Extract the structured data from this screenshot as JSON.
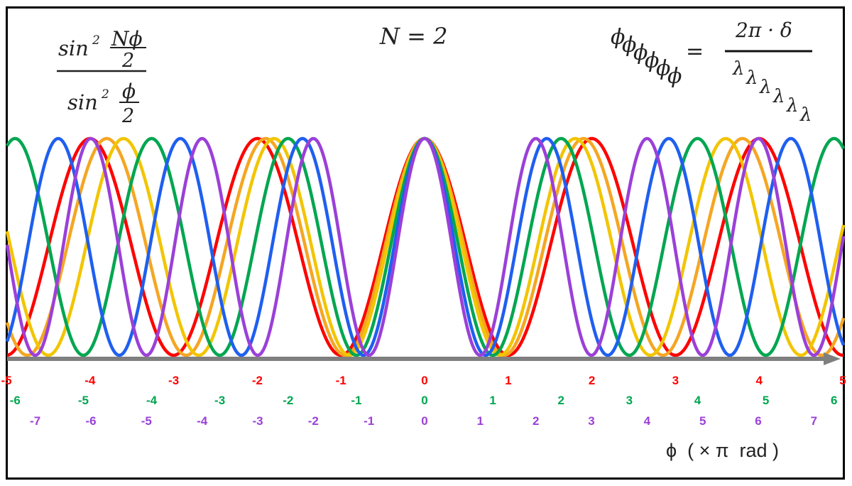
{
  "formula": {
    "numerator_func": "sin",
    "numerator_power": "2",
    "numerator_arg": "Nϕ",
    "numerator_den": "2",
    "denominator_func": "sin",
    "denominator_power": "2",
    "denominator_arg": "ϕ",
    "denominator_den": "2"
  },
  "n_label": "N = 2",
  "phase_formula": {
    "lhs_symbol": "ϕ",
    "equals": "=",
    "numerator": "2π · δ",
    "denominator_symbol": "λ"
  },
  "chart_data": {
    "type": "line",
    "function": "sin^2(Nϕ/2) / sin^2(ϕ/2)",
    "N": 2,
    "xlabel": "ϕ  ( × π  rad )",
    "grid": false,
    "x_range_pi_red": [
      -5,
      5
    ],
    "series": [
      {
        "color": "#ff0000",
        "wavelength_ratio": 1.0
      },
      {
        "color": "#f5a623",
        "wavelength_ratio": 0.95
      },
      {
        "color": "#f2c500",
        "wavelength_ratio": 0.9
      },
      {
        "color": "#00a650",
        "wavelength_ratio": 0.816
      },
      {
        "color": "#1f5ff0",
        "wavelength_ratio": 0.73
      },
      {
        "color": "#9b40d8",
        "wavelength_ratio": 0.665
      }
    ],
    "tick_rows": [
      {
        "color": "#ff0000",
        "wavelength_ratio": 1.0,
        "labels": [
          "-5",
          "-4",
          "-3",
          "-2",
          "-1",
          "0",
          "1",
          "2",
          "3",
          "4",
          "5"
        ]
      },
      {
        "color": "#00a650",
        "wavelength_ratio": 0.816,
        "labels": [
          "-6",
          "-5",
          "-4",
          "-3",
          "-2",
          "-1",
          "0",
          "1",
          "2",
          "3",
          "4",
          "5",
          "6"
        ]
      },
      {
        "color": "#9b40d8",
        "wavelength_ratio": 0.665,
        "labels": [
          "-7",
          "-6",
          "-5",
          "-4",
          "-3",
          "-2",
          "-1",
          "0",
          "1",
          "2",
          "3",
          "4",
          "5",
          "6",
          "7"
        ]
      }
    ]
  }
}
